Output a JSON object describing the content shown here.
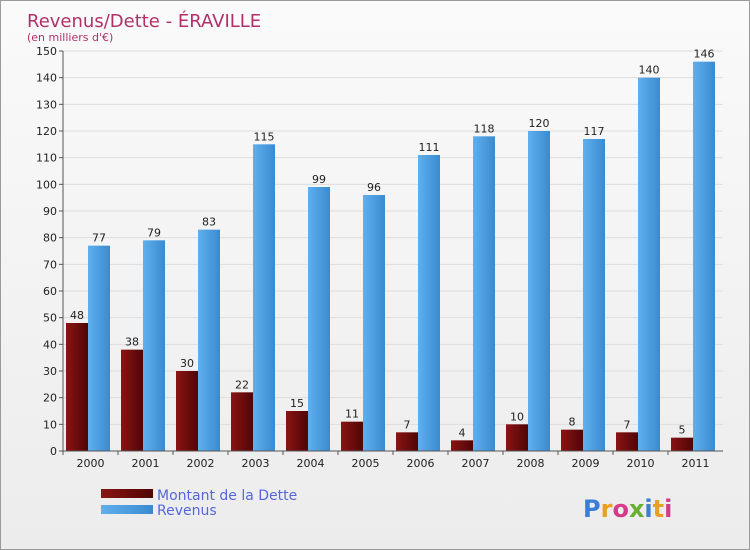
{
  "chart_data": {
    "type": "bar",
    "title": "Revenus/Dette - ÉRAVILLE",
    "subtitle": "(en milliers d'€)",
    "categories": [
      "2000",
      "2001",
      "2002",
      "2003",
      "2004",
      "2005",
      "2006",
      "2007",
      "2008",
      "2009",
      "2010",
      "2011"
    ],
    "series": [
      {
        "name": "Montant de la Dette",
        "values": [
          48,
          38,
          30,
          22,
          15,
          11,
          7,
          4,
          10,
          8,
          7,
          5
        ]
      },
      {
        "name": "Revenus",
        "values": [
          77,
          79,
          83,
          115,
          99,
          96,
          111,
          118,
          120,
          117,
          140,
          146
        ]
      }
    ],
    "ylim": [
      0,
      150
    ],
    "yticks": [
      0,
      10,
      20,
      30,
      40,
      50,
      60,
      70,
      80,
      90,
      100,
      110,
      120,
      130,
      140,
      150
    ],
    "grid": true,
    "legend": "bottom-left"
  },
  "colors": {
    "dette": "#7a0c0c",
    "revenus": "#4a9fe0"
  },
  "logo": "Proxiti"
}
